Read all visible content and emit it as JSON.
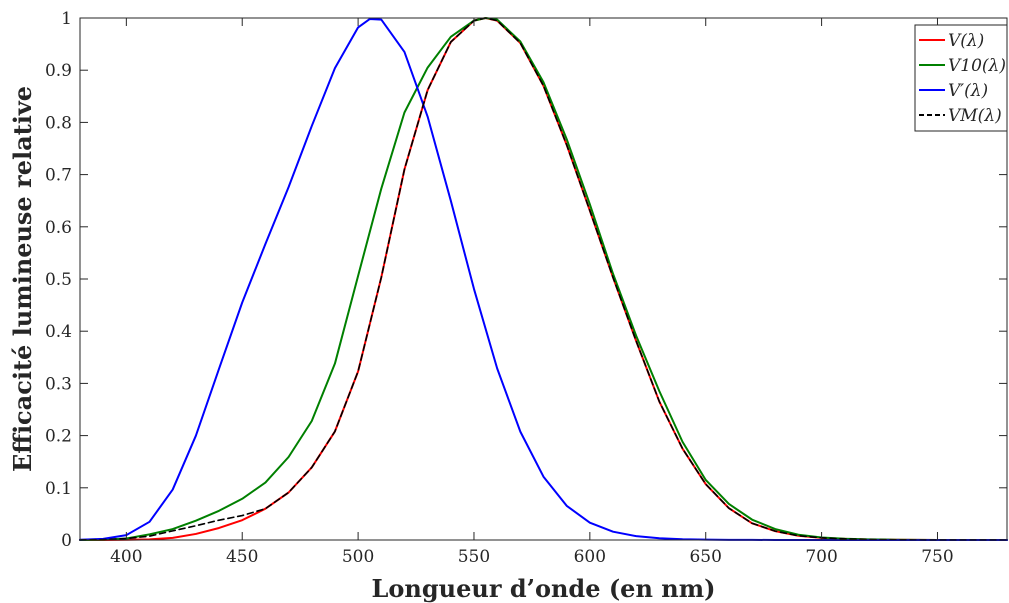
{
  "chart_data": {
    "type": "line",
    "xlabel": "Longueur d’onde (en nm)",
    "ylabel": "Efficacité lumineuse relative",
    "xlim": [
      380,
      780
    ],
    "ylim": [
      0,
      1
    ],
    "xticks": [
      400,
      450,
      500,
      550,
      600,
      650,
      700,
      750
    ],
    "xtick_labels": [
      "400",
      "450",
      "500",
      "550",
      "600",
      "650",
      "700",
      "750"
    ],
    "yticks": [
      0,
      0.1,
      0.2,
      0.3,
      0.4,
      0.5,
      0.6,
      0.7,
      0.8,
      0.9,
      1
    ],
    "ytick_labels": [
      "0",
      "0.1",
      "0.2",
      "0.3",
      "0.4",
      "0.5",
      "0.6",
      "0.7",
      "0.8",
      "0.9",
      "1"
    ],
    "grid": false,
    "legend_position": "top-right",
    "series": [
      {
        "name": "V(λ)",
        "color": "#ff0000",
        "dash": "solid",
        "x": [
          380,
          390,
          400,
          410,
          420,
          430,
          440,
          450,
          460,
          470,
          480,
          490,
          500,
          510,
          520,
          530,
          540,
          550,
          555,
          560,
          570,
          580,
          590,
          600,
          610,
          620,
          630,
          640,
          650,
          660,
          670,
          680,
          690,
          700,
          710,
          720,
          730,
          740,
          750,
          760,
          770,
          780
        ],
        "y": [
          4e-05,
          0.00012,
          0.0004,
          0.0012,
          0.004,
          0.0116,
          0.023,
          0.038,
          0.06,
          0.091,
          0.139,
          0.208,
          0.323,
          0.503,
          0.71,
          0.862,
          0.954,
          0.995,
          1.0,
          0.995,
          0.952,
          0.87,
          0.757,
          0.631,
          0.503,
          0.381,
          0.265,
          0.175,
          0.107,
          0.061,
          0.032,
          0.017,
          0.0082,
          0.0041,
          0.0021,
          0.00105,
          0.00052,
          0.00025,
          0.00012,
          6e-05,
          3e-05,
          1.5e-05
        ]
      },
      {
        "name": "V10(λ)",
        "color": "#008000",
        "dash": "solid",
        "x": [
          380,
          390,
          400,
          410,
          420,
          430,
          440,
          450,
          460,
          470,
          480,
          490,
          500,
          510,
          520,
          530,
          540,
          550,
          555,
          560,
          570,
          580,
          590,
          600,
          610,
          620,
          630,
          640,
          650,
          660,
          670,
          680,
          690,
          700,
          710,
          720,
          730,
          740,
          750,
          760,
          770,
          780
        ],
        "y": [
          0.0,
          0.0005,
          0.0029,
          0.0108,
          0.021,
          0.037,
          0.056,
          0.079,
          0.11,
          0.159,
          0.228,
          0.338,
          0.506,
          0.673,
          0.819,
          0.905,
          0.964,
          0.995,
          1.0,
          0.997,
          0.955,
          0.877,
          0.768,
          0.643,
          0.51,
          0.391,
          0.285,
          0.188,
          0.115,
          0.069,
          0.039,
          0.021,
          0.01,
          0.0049,
          0.0024,
          0.0012,
          0.0006,
          0.0003,
          0.0001,
          5e-05,
          2e-05,
          1e-05
        ]
      },
      {
        "name": "V′(λ)",
        "color": "#0000ff",
        "dash": "solid",
        "x": [
          380,
          390,
          400,
          410,
          420,
          430,
          440,
          450,
          460,
          470,
          480,
          490,
          500,
          505,
          510,
          520,
          530,
          540,
          550,
          560,
          570,
          580,
          590,
          600,
          610,
          620,
          630,
          640,
          650,
          660,
          670,
          680,
          690,
          700,
          710,
          720,
          730,
          740,
          750,
          760,
          770,
          780
        ],
        "y": [
          0.00059,
          0.00221,
          0.00929,
          0.03484,
          0.0966,
          0.1998,
          0.3281,
          0.455,
          0.567,
          0.676,
          0.793,
          0.904,
          0.982,
          0.998,
          0.997,
          0.935,
          0.811,
          0.65,
          0.481,
          0.3288,
          0.2076,
          0.1212,
          0.0655,
          0.03315,
          0.01593,
          0.00737,
          0.003335,
          0.001497,
          0.000677,
          0.000313,
          0.000148,
          7.15e-05,
          3.53e-05,
          1.78e-05,
          9.1e-06,
          4.8e-06,
          2.5e-06,
          1.4e-06,
          8e-07,
          4e-07,
          2e-07,
          1e-07
        ]
      },
      {
        "name": "VM(λ)",
        "color": "#000000",
        "dash": "dashed",
        "x": [
          380,
          390,
          400,
          410,
          420,
          430,
          440,
          450,
          460,
          470,
          480,
          490,
          500,
          510,
          520,
          530,
          540,
          550,
          555,
          560,
          570,
          580,
          590,
          600,
          610,
          620,
          630,
          640,
          650,
          660,
          670,
          680,
          690,
          700,
          710,
          720,
          730,
          740,
          750,
          760,
          770,
          780
        ],
        "y": [
          0.0002,
          0.0008,
          0.0028,
          0.0074,
          0.0175,
          0.0273,
          0.038,
          0.0468,
          0.06,
          0.091,
          0.139,
          0.208,
          0.323,
          0.503,
          0.71,
          0.862,
          0.954,
          0.995,
          1.0,
          0.995,
          0.952,
          0.87,
          0.757,
          0.631,
          0.503,
          0.381,
          0.265,
          0.175,
          0.107,
          0.061,
          0.032,
          0.017,
          0.0082,
          0.0041,
          0.0021,
          0.00105,
          0.00052,
          0.00025,
          0.00012,
          6e-05,
          3e-05,
          1.5e-05
        ]
      }
    ]
  }
}
